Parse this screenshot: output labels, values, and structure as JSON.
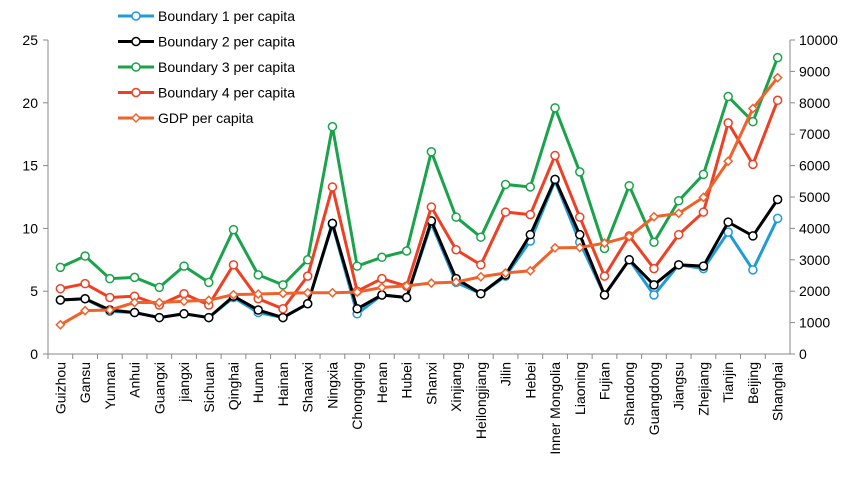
{
  "chart_data": {
    "type": "line",
    "categories": [
      "Guizhou",
      "Gansu",
      "Yunnan",
      "Anhui",
      "Guangxi",
      "jiangxi",
      "Sichuan",
      "Qinghai",
      "Hunan",
      "Hainan",
      "Shaanxi",
      "Ningxia",
      "Chongqing",
      "Henan",
      "Hubei",
      "Shanxi",
      "Xinjiang",
      "Heilongjiang",
      "Jilin",
      "Hebei",
      "Inner Mongolia",
      "Liaoning",
      "Fujian",
      "Shandong",
      "Guangdong",
      "Jiangsu",
      "Zhejiang",
      "Tianjin",
      "Beijing",
      "Shanghai"
    ],
    "series": [
      {
        "name": "Boundary 1 per capita",
        "color": "#1f9bd7",
        "marker": "circle",
        "values": [
          4.3,
          4.4,
          3.4,
          3.3,
          2.9,
          3.2,
          2.9,
          4.5,
          3.3,
          2.9,
          4.0,
          10.3,
          3.2,
          4.7,
          4.5,
          10.4,
          5.7,
          4.8,
          6.2,
          9.0,
          13.8,
          8.9,
          4.7,
          7.5,
          4.7,
          7.1,
          6.8,
          9.7,
          6.7,
          10.8
        ]
      },
      {
        "name": "Boundary 2 per capita",
        "color": "#000000",
        "marker": "circle",
        "values": [
          4.3,
          4.4,
          3.5,
          3.3,
          2.9,
          3.2,
          2.9,
          4.6,
          3.5,
          2.9,
          4.0,
          10.4,
          3.6,
          4.7,
          4.5,
          10.6,
          6.0,
          4.8,
          6.3,
          9.5,
          13.9,
          9.5,
          4.7,
          7.5,
          5.5,
          7.1,
          7.0,
          10.5,
          9.4,
          12.3
        ]
      },
      {
        "name": "Boundary 3 per capita",
        "color": "#1aa34a",
        "marker": "circle",
        "values": [
          6.9,
          7.8,
          6.0,
          6.1,
          5.3,
          7.0,
          5.7,
          9.9,
          6.3,
          5.5,
          7.5,
          18.1,
          7.0,
          7.7,
          8.2,
          16.1,
          10.9,
          9.3,
          13.5,
          13.3,
          19.6,
          14.5,
          8.4,
          13.4,
          8.9,
          12.2,
          14.3,
          20.5,
          18.5,
          23.6
        ]
      },
      {
        "name": "Boundary 4 per capita",
        "color": "#ee4024",
        "marker": "circle",
        "values": [
          5.2,
          5.6,
          4.5,
          4.6,
          3.9,
          4.8,
          3.9,
          7.1,
          4.4,
          3.6,
          6.2,
          13.3,
          5.0,
          6.0,
          5.4,
          11.7,
          8.3,
          7.1,
          11.3,
          11.1,
          15.8,
          10.9,
          6.2,
          9.4,
          6.8,
          9.5,
          11.3,
          18.4,
          15.1,
          20.2
        ]
      },
      {
        "name": "GDP per capita",
        "color": "#f0622a",
        "marker": "diamond",
        "axis": "y2",
        "values": [
          930,
          1380,
          1400,
          1640,
          1640,
          1680,
          1710,
          1890,
          1910,
          1930,
          1950,
          1950,
          1970,
          2120,
          2170,
          2260,
          2290,
          2460,
          2580,
          2650,
          3380,
          3390,
          3530,
          3740,
          4370,
          4480,
          4990,
          6140,
          7820,
          8800
        ]
      }
    ],
    "ylim": [
      0,
      25
    ],
    "yticks": [
      0,
      5,
      10,
      15,
      20,
      25
    ],
    "y2lim": [
      0,
      10000
    ],
    "y2ticks": [
      0,
      1000,
      2000,
      3000,
      4000,
      5000,
      6000,
      7000,
      8000,
      9000,
      10000
    ],
    "legend": "top-left",
    "grid": false
  }
}
